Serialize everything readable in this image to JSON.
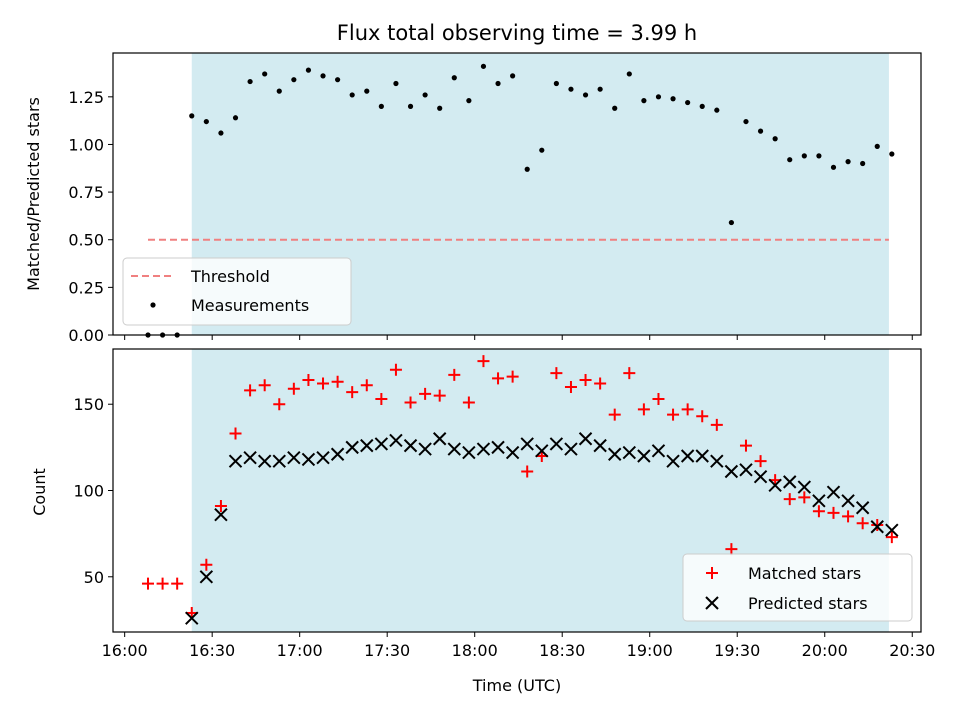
{
  "chart_data": {
    "title": "Flux total observing time = 3.99 h",
    "xlabel": "Time (UTC)",
    "x_ticks": [
      "16:00",
      "16:30",
      "17:00",
      "17:30",
      "18:00",
      "18:30",
      "19:00",
      "19:30",
      "20:00",
      "20:30"
    ],
    "x_range": [
      "15:56",
      "20:33"
    ],
    "observing_window": [
      "16:23",
      "20:22"
    ],
    "window_color": "#d3ebf1",
    "top": {
      "type": "scatter",
      "ylabel": "Matched/Predicted stars",
      "ylim": [
        0,
        1.48
      ],
      "y_ticks": [
        "0.00",
        "0.25",
        "0.50",
        "0.75",
        "1.00",
        "1.25"
      ],
      "threshold": {
        "name": "Threshold",
        "value": 0.5,
        "x_start": "16:08",
        "x_end": "20:22",
        "color": "#f08080"
      },
      "legend": {
        "placement": "lower-left",
        "entries": [
          "Threshold",
          "Measurements"
        ]
      },
      "series": [
        {
          "name": "Measurements",
          "color": "#000000",
          "x": [
            "16:08",
            "16:13",
            "16:18",
            "16:23",
            "16:28",
            "16:33",
            "16:38",
            "16:43",
            "16:48",
            "16:53",
            "16:58",
            "17:03",
            "17:08",
            "17:13",
            "17:18",
            "17:23",
            "17:28",
            "17:33",
            "17:38",
            "17:43",
            "17:48",
            "17:53",
            "17:58",
            "18:03",
            "18:08",
            "18:13",
            "18:18",
            "18:23",
            "18:28",
            "18:33",
            "18:38",
            "18:43",
            "18:48",
            "18:53",
            "18:58",
            "19:03",
            "19:08",
            "19:13",
            "19:18",
            "19:23",
            "19:28",
            "19:33",
            "19:38",
            "19:43",
            "19:48",
            "19:53",
            "19:58",
            "20:03",
            "20:08",
            "20:13",
            "20:18",
            "20:23"
          ],
          "y": [
            0.0,
            0.0,
            0.0,
            1.15,
            1.12,
            1.06,
            1.14,
            1.33,
            1.37,
            1.28,
            1.34,
            1.39,
            1.36,
            1.34,
            1.26,
            1.28,
            1.2,
            1.32,
            1.2,
            1.26,
            1.19,
            1.35,
            1.23,
            1.41,
            1.32,
            1.36,
            0.87,
            0.97,
            1.32,
            1.29,
            1.26,
            1.29,
            1.19,
            1.37,
            1.23,
            1.25,
            1.24,
            1.22,
            1.2,
            1.18,
            0.59,
            1.12,
            1.07,
            1.03,
            0.92,
            0.94,
            0.94,
            0.88,
            0.91,
            0.9,
            0.99,
            0.95
          ]
        }
      ]
    },
    "bottom": {
      "type": "scatter",
      "ylabel": "Count",
      "ylim": [
        18,
        182
      ],
      "y_ticks": [
        "50",
        "100",
        "150"
      ],
      "legend": {
        "placement": "lower-right",
        "entries": [
          "Matched stars",
          "Predicted stars"
        ]
      },
      "series": [
        {
          "name": "Matched stars",
          "marker": "plus",
          "color": "#ff0000",
          "x": [
            "16:08",
            "16:13",
            "16:18",
            "16:23",
            "16:28",
            "16:33",
            "16:38",
            "16:43",
            "16:48",
            "16:53",
            "16:58",
            "17:03",
            "17:08",
            "17:13",
            "17:18",
            "17:23",
            "17:28",
            "17:33",
            "17:38",
            "17:43",
            "17:48",
            "17:53",
            "17:58",
            "18:03",
            "18:08",
            "18:13",
            "18:18",
            "18:23",
            "18:28",
            "18:33",
            "18:38",
            "18:43",
            "18:48",
            "18:53",
            "18:58",
            "19:03",
            "19:08",
            "19:13",
            "19:18",
            "19:23",
            "19:28",
            "19:33",
            "19:38",
            "19:43",
            "19:48",
            "19:53",
            "19:58",
            "20:03",
            "20:08",
            "20:13",
            "20:18",
            "20:23"
          ],
          "y": [
            46,
            46,
            46,
            29,
            57,
            91,
            133,
            158,
            161,
            150,
            159,
            164,
            162,
            163,
            157,
            161,
            153,
            170,
            151,
            156,
            155,
            167,
            151,
            175,
            165,
            166,
            111,
            120,
            168,
            160,
            164,
            162,
            144,
            168,
            147,
            153,
            144,
            147,
            143,
            138,
            66,
            126,
            117,
            106,
            95,
            96,
            88,
            87,
            85,
            81,
            80,
            73
          ]
        },
        {
          "name": "Predicted stars",
          "marker": "x",
          "color": "#000000",
          "x": [
            "16:23",
            "16:28",
            "16:33",
            "16:38",
            "16:43",
            "16:48",
            "16:53",
            "16:58",
            "17:03",
            "17:08",
            "17:13",
            "17:18",
            "17:23",
            "17:28",
            "17:33",
            "17:38",
            "17:43",
            "17:48",
            "17:53",
            "17:58",
            "18:03",
            "18:08",
            "18:13",
            "18:18",
            "18:23",
            "18:28",
            "18:33",
            "18:38",
            "18:43",
            "18:48",
            "18:53",
            "18:58",
            "19:03",
            "19:08",
            "19:13",
            "19:18",
            "19:23",
            "19:28",
            "19:33",
            "19:38",
            "19:43",
            "19:48",
            "19:53",
            "19:58",
            "20:03",
            "20:08",
            "20:13",
            "20:18",
            "20:23"
          ],
          "y": [
            26,
            50,
            86,
            117,
            119,
            117,
            117,
            119,
            118,
            119,
            121,
            125,
            126,
            127,
            129,
            126,
            124,
            130,
            124,
            122,
            124,
            125,
            122,
            127,
            123,
            127,
            124,
            130,
            126,
            121,
            122,
            120,
            123,
            117,
            120,
            120,
            117,
            111,
            112,
            108,
            103,
            105,
            102,
            94,
            99,
            94,
            90,
            79,
            77
          ]
        }
      ]
    }
  }
}
